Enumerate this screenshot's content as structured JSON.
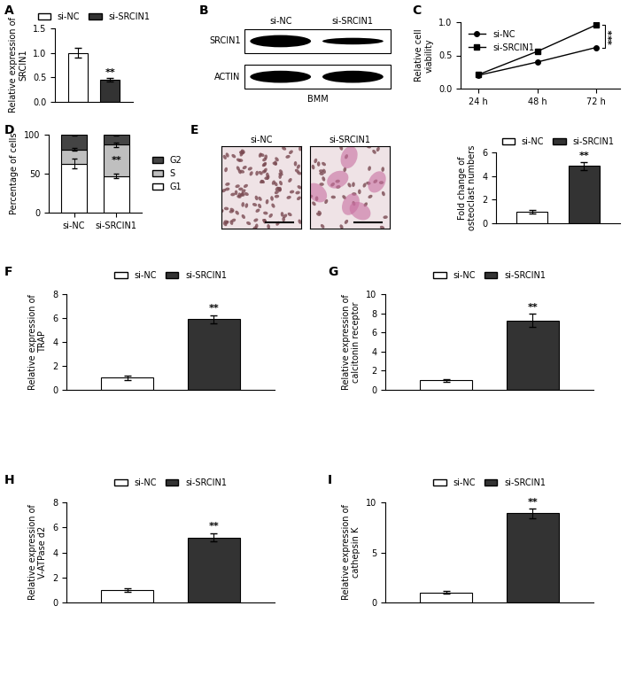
{
  "chart_data": [
    {
      "panel": "A",
      "type": "bar",
      "y_label": "Relative expression of SRCIN1",
      "series": [
        {
          "name": "si-NC",
          "color": "#ffffff",
          "values": [
            1.0
          ],
          "errors": [
            0.1
          ]
        },
        {
          "name": "si-SRCIN1",
          "color": "#333333",
          "values": [
            0.45
          ],
          "errors": [
            0.03
          ]
        }
      ],
      "ylim": [
        0.0,
        1.5
      ],
      "yticks": [
        0.0,
        0.5,
        1.0,
        1.5
      ],
      "legend": "upper center",
      "tick_labels": "y",
      "annotations": [
        "**"
      ]
    },
    {
      "panel": "B",
      "type": "blot",
      "lanes": [
        "si-NC",
        "si-SRCIN1"
      ],
      "bands": [
        "SRCIN1",
        "ACTIN"
      ],
      "caption": "BMM"
    },
    {
      "panel": "C",
      "type": "line",
      "y_label": "Relative cell viability",
      "categories": [
        "24 h",
        "48 h",
        "72 h"
      ],
      "series": [
        {
          "name": "si-NC",
          "color": "#000000",
          "marker": "circle",
          "values": [
            0.2,
            0.4,
            0.62
          ]
        },
        {
          "name": "si-SRCIN1",
          "color": "#000000",
          "marker": "square",
          "values": [
            0.21,
            0.56,
            0.96
          ]
        }
      ],
      "ylim": [
        0.0,
        1.0
      ],
      "yticks": [
        0.0,
        0.5,
        1.0
      ],
      "legend": "upper left",
      "annotations": [
        "***"
      ]
    },
    {
      "panel": "D",
      "type": "bar",
      "stacked": true,
      "y_label": "Percentage of cells",
      "categories": [
        "si-NC",
        "si-SRCIN1"
      ],
      "series": [
        {
          "name": "G1",
          "color": "#ffffff",
          "values": [
            63,
            47
          ],
          "errors": [
            6,
            3
          ]
        },
        {
          "name": "S",
          "color": "#bfbfbf",
          "values": [
            18,
            40
          ],
          "errors": [
            2,
            3
          ]
        },
        {
          "name": "G2",
          "color": "#444444",
          "values": [
            19,
            13
          ],
          "errors": [
            1,
            1
          ]
        }
      ],
      "ylim": [
        0,
        100
      ],
      "yticks": [
        0,
        50,
        100
      ],
      "legend": "center left",
      "annotations": [
        "**"
      ]
    },
    {
      "panel": "E",
      "type": "image",
      "images": [
        "si-NC",
        "si-SRCIN1"
      ]
    },
    {
      "type": "bar",
      "y_label": "Fold change of osteoclast numbers",
      "series": [
        {
          "name": "si-NC",
          "color": "#ffffff",
          "values": [
            1.0
          ],
          "errors": [
            0.15
          ]
        },
        {
          "name": "si-SRCIN1",
          "color": "#333333",
          "values": [
            4.85
          ],
          "errors": [
            0.35
          ]
        }
      ],
      "ylim": [
        0,
        6
      ],
      "yticks": [
        0,
        2,
        4,
        6
      ],
      "legend": "upper center",
      "tick_labels": "y",
      "annotations": [
        "**"
      ]
    },
    {
      "panel": "F",
      "type": "bar",
      "y_label": "Relative expression of TRAP",
      "series": [
        {
          "name": "si-NC",
          "color": "#ffffff",
          "values": [
            1.0
          ],
          "errors": [
            0.15
          ]
        },
        {
          "name": "si-SRCIN1",
          "color": "#333333",
          "values": [
            5.9
          ],
          "errors": [
            0.35
          ]
        }
      ],
      "ylim": [
        0,
        8
      ],
      "yticks": [
        0,
        2,
        4,
        6,
        8
      ],
      "legend": "upper center",
      "tick_labels": "y",
      "annotations": [
        "**"
      ]
    },
    {
      "panel": "G",
      "type": "bar",
      "y_label": "Relative expression of calcitonin receptor",
      "series": [
        {
          "name": "si-NC",
          "color": "#ffffff",
          "values": [
            1.0
          ],
          "errors": [
            0.15
          ]
        },
        {
          "name": "si-SRCIN1",
          "color": "#333333",
          "values": [
            7.25
          ],
          "errors": [
            0.7
          ]
        }
      ],
      "ylim": [
        0,
        10
      ],
      "yticks": [
        0,
        2,
        4,
        6,
        8,
        10
      ],
      "legend": "upper center",
      "tick_labels": "y",
      "annotations": [
        "**"
      ]
    },
    {
      "panel": "H",
      "type": "bar",
      "y_label": "Relative expression of V-ATPase d2",
      "series": [
        {
          "name": "si-NC",
          "color": "#ffffff",
          "values": [
            1.0
          ],
          "errors": [
            0.12
          ]
        },
        {
          "name": "si-SRCIN1",
          "color": "#333333",
          "values": [
            5.2
          ],
          "errors": [
            0.35
          ]
        }
      ],
      "ylim": [
        0,
        8
      ],
      "yticks": [
        0,
        2,
        4,
        6,
        8
      ],
      "legend": "upper center",
      "tick_labels": "y",
      "annotations": [
        "**"
      ]
    },
    {
      "panel": "I",
      "type": "bar",
      "y_label": "Relative expression of cathepsin K",
      "series": [
        {
          "name": "si-NC",
          "color": "#ffffff",
          "values": [
            1.0
          ],
          "errors": [
            0.15
          ]
        },
        {
          "name": "si-SRCIN1",
          "color": "#333333",
          "values": [
            8.9
          ],
          "errors": [
            0.5
          ]
        }
      ],
      "ylim": [
        0,
        10
      ],
      "yticks": [
        0,
        5,
        10
      ],
      "legend": "upper center",
      "tick_labels": "y",
      "annotations": [
        "**"
      ]
    }
  ]
}
